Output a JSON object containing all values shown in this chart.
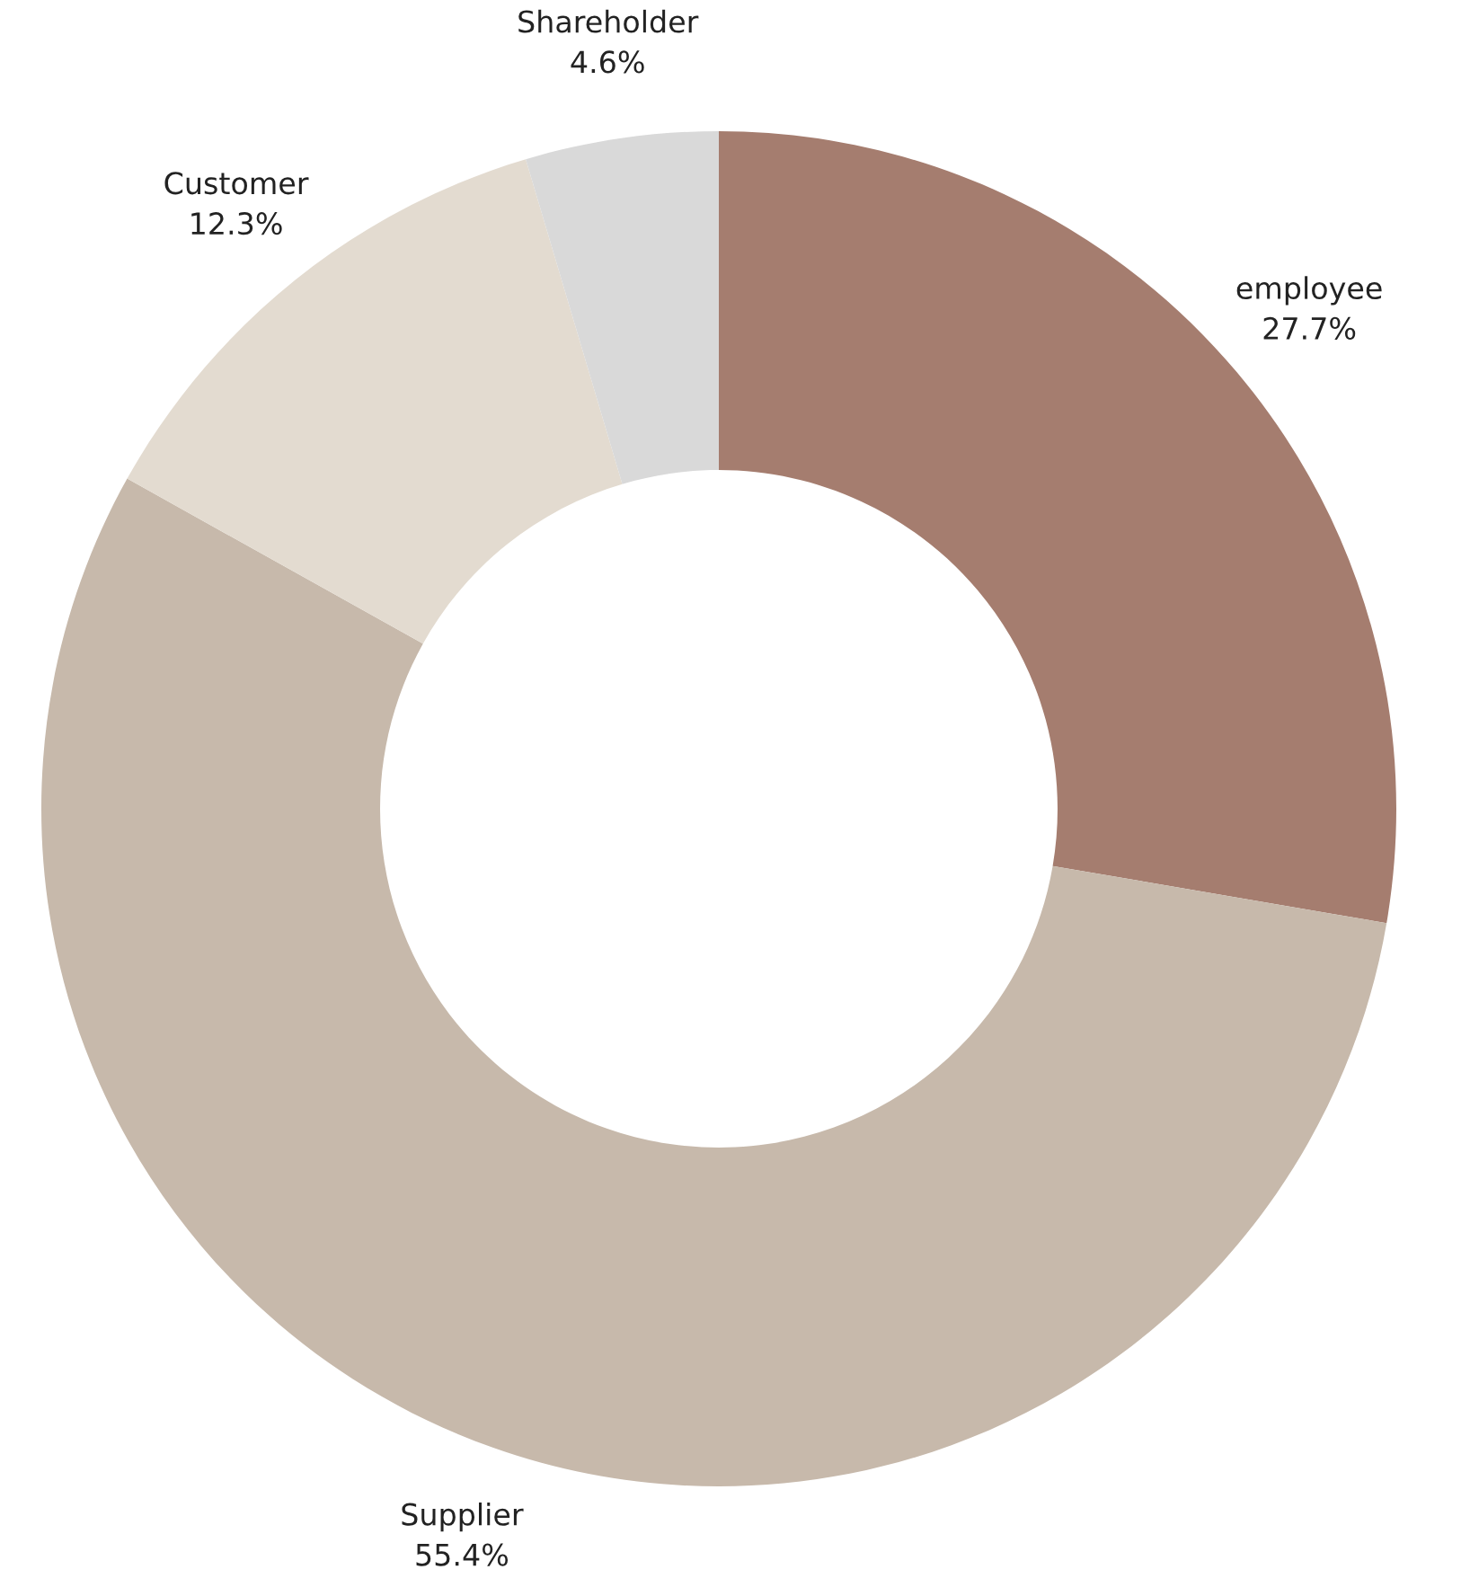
{
  "chart_data": {
    "type": "donut",
    "categories": [
      "employee",
      "Supplier",
      "Customer",
      "Shareholder"
    ],
    "values": [
      27.7,
      55.4,
      12.3,
      4.6
    ],
    "colors": [
      "#a57d6f",
      "#c7b9ab",
      "#e3dbd0",
      "#d9d9d9"
    ],
    "value_labels": [
      "27.7%",
      "55.4%",
      "12.3%",
      "4.6%"
    ]
  }
}
